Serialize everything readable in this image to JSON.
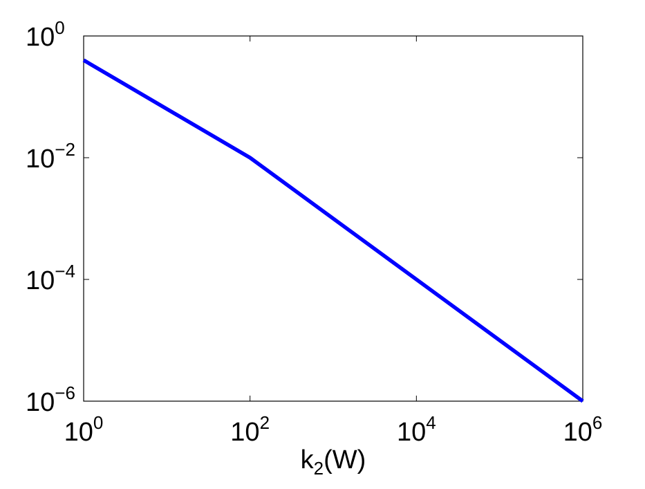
{
  "chart_data": {
    "type": "line",
    "title": "",
    "xlabel": {
      "base": "k",
      "subscript": "2",
      "rest": "(W)"
    },
    "ylabel": "",
    "xscale": "log",
    "yscale": "log",
    "xlim": [
      1,
      1000000
    ],
    "ylim": [
      1e-06,
      1
    ],
    "grid": false,
    "legend": "none",
    "xticks": [
      {
        "base": "10",
        "exp": "0",
        "value": 1
      },
      {
        "base": "10",
        "exp": "2",
        "value": 100
      },
      {
        "base": "10",
        "exp": "4",
        "value": 10000
      },
      {
        "base": "10",
        "exp": "6",
        "value": 1000000
      }
    ],
    "yticks": [
      {
        "base": "10",
        "exp": "0",
        "value": 1
      },
      {
        "base": "10",
        "exp": "−2",
        "value": 0.01
      },
      {
        "base": "10",
        "exp": "−4",
        "value": 0.0001
      },
      {
        "base": "10",
        "exp": "−6",
        "value": 1e-06
      }
    ],
    "series": [
      {
        "color": "#0000ff",
        "x": [
          1,
          100,
          1000000
        ],
        "y": [
          0.4,
          0.01,
          1e-06
        ]
      }
    ]
  }
}
